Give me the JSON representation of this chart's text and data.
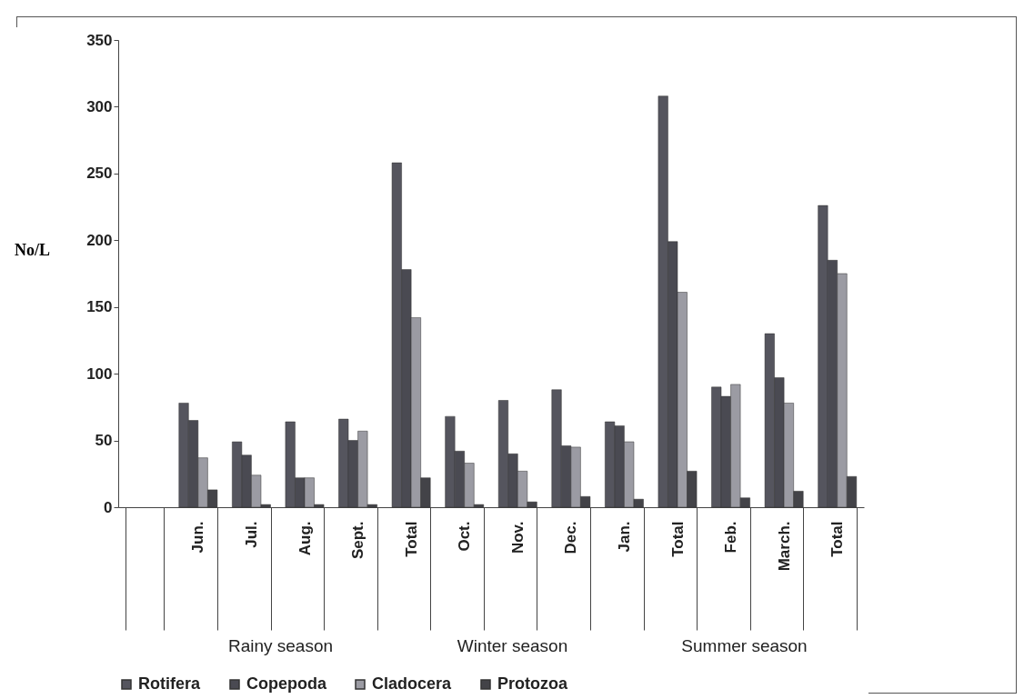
{
  "chart_data": {
    "type": "bar",
    "ylabel": "No/L",
    "categories": [
      null,
      "Jun.",
      "Jul.",
      "Aug.",
      "Sept.",
      "Total",
      "Oct.",
      "Nov.",
      "Dec.",
      "Jan.",
      "Total",
      "Feb.",
      "March.",
      "Total"
    ],
    "series": [
      {
        "name": "Rotifera",
        "color": "#55555e",
        "values": [
          null,
          78,
          49,
          64,
          66,
          258,
          68,
          80,
          88,
          64,
          308,
          90,
          130,
          226
        ]
      },
      {
        "name": "Copepoda",
        "color": "#4a4a52",
        "values": [
          null,
          65,
          39,
          22,
          50,
          178,
          42,
          40,
          46,
          61,
          199,
          83,
          97,
          185
        ]
      },
      {
        "name": "Cladocera",
        "color": "#9b9ba3",
        "values": [
          null,
          37,
          24,
          22,
          57,
          142,
          33,
          27,
          45,
          49,
          161,
          92,
          78,
          175
        ]
      },
      {
        "name": "Protozoa",
        "color": "#434348",
        "values": [
          null,
          13,
          2,
          2,
          2,
          22,
          2,
          4,
          8,
          6,
          27,
          7,
          12,
          23
        ]
      }
    ],
    "ylim": [
      0,
      350
    ],
    "yticks": [
      0,
      50,
      100,
      150,
      200,
      250,
      300,
      350
    ],
    "grid": false,
    "legend": "bottom",
    "annotations": [
      "Rainy season",
      "Winter season",
      "Summer season"
    ]
  }
}
